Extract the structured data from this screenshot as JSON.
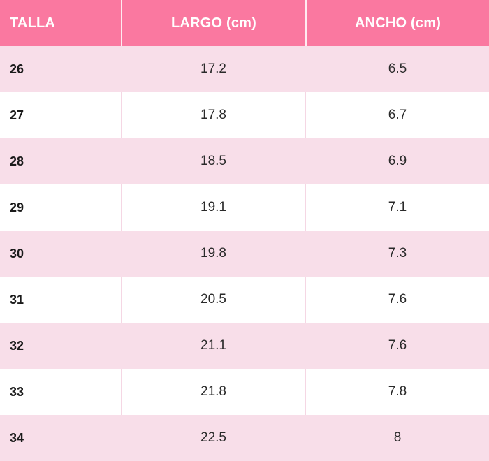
{
  "colors": {
    "header_bg": "#fa78a0",
    "header_text": "#ffffff",
    "row_alt_bg": "#f8dee9",
    "row_bg": "#ffffff",
    "body_text": "#2a2a2a",
    "size_text": "#1a1a1a",
    "header_divider": "#ffffff",
    "body_divider": "#f5d7e4"
  },
  "chart_data": {
    "type": "table",
    "title": "",
    "columns": [
      "TALLA",
      "LARGO (cm)",
      "ANCHO (cm)"
    ],
    "rows": [
      [
        "26",
        "17.2",
        "6.5"
      ],
      [
        "27",
        "17.8",
        "6.7"
      ],
      [
        "28",
        "18.5",
        "6.9"
      ],
      [
        "29",
        "19.1",
        "7.1"
      ],
      [
        "30",
        "19.8",
        "7.3"
      ],
      [
        "31",
        "20.5",
        "7.6"
      ],
      [
        "32",
        "21.1",
        "7.6"
      ],
      [
        "33",
        "21.8",
        "7.8"
      ],
      [
        "34",
        "22.5",
        "8"
      ]
    ]
  }
}
